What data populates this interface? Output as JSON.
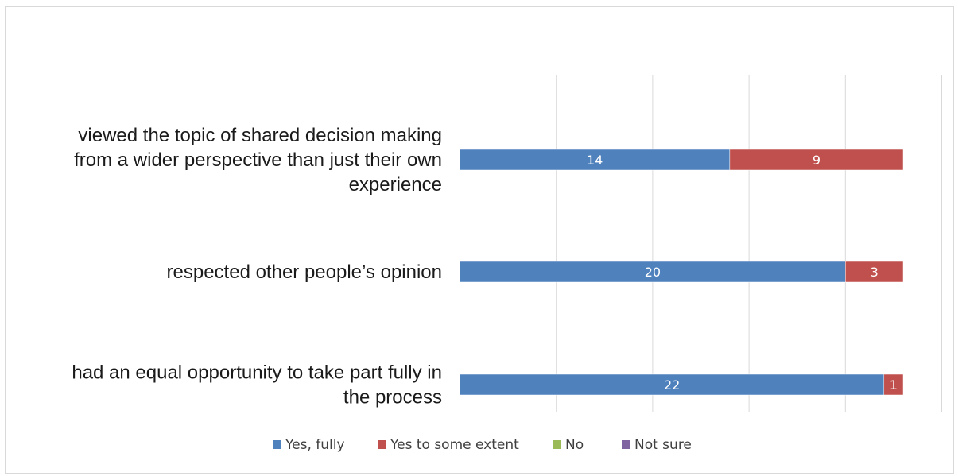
{
  "chart_data": {
    "type": "bar",
    "orientation": "horizontal",
    "stacked": true,
    "title": "",
    "xlabel": "",
    "ylabel": "",
    "categories": [
      "viewed the topic of shared decision making from a wider perspective than just their own experience",
      "respected other people’s opinion",
      "had an equal opportunity to take part fully in the process"
    ],
    "category_lines": [
      [
        "viewed the topic of shared decision making",
        "from a wider perspective than just their own",
        "experience"
      ],
      [
        "respected other people’s opinion"
      ],
      [
        "had an equal opportunity to take part fully in",
        "the process"
      ]
    ],
    "series": [
      {
        "name": "Yes, fully",
        "color": "#4f81bd",
        "values": [
          14,
          20,
          22
        ],
        "labels": [
          "14",
          "20",
          "22"
        ]
      },
      {
        "name": "Yes to some extent",
        "color": "#c0504d",
        "values": [
          9,
          3,
          1
        ],
        "labels": [
          "9",
          "3",
          "1"
        ]
      },
      {
        "name": "No",
        "color": "#9bbb59",
        "values": [
          0,
          0,
          0
        ],
        "labels": [
          "",
          "",
          ""
        ]
      },
      {
        "name": "Not sure",
        "color": "#8064a2",
        "values": [
          0,
          0,
          0
        ],
        "labels": [
          "",
          "",
          ""
        ]
      }
    ],
    "xlim": [
      0,
      25
    ],
    "grid_step": 5,
    "grid": true,
    "axis_tick_labels": false,
    "legend_position": "bottom",
    "gridline_color": "#d9d9d9"
  }
}
